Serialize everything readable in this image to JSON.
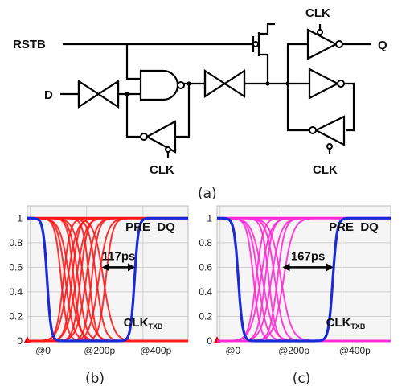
{
  "circuit": {
    "labels": {
      "rstb": "RSTB",
      "d": "D",
      "q": "Q",
      "clk_top": "CLK",
      "clk_bottom_left": "CLK",
      "clk_bottom_right": "CLK"
    },
    "caption": "(a)"
  },
  "chart_data": [
    {
      "type": "line",
      "caption": "(b)",
      "x_ticks": [
        "@0",
        "@200p",
        "@400p"
      ],
      "y_ticks": [
        "1",
        "0.8",
        "0.6",
        "0.4",
        "0.2",
        "0"
      ],
      "ylim": [
        0,
        1.1
      ],
      "xlim": [
        -10,
        560
      ],
      "series_colors": [
        "#ff1a1a",
        "#1a2bd6"
      ],
      "series": [
        {
          "name": "PRE_DQ",
          "color": "#ff1a1a",
          "crossings": [
            110,
            125,
            140,
            155,
            170,
            190,
            210,
            235,
            260
          ],
          "traces": "eye"
        },
        {
          "name": "CLK",
          "name_subscript": "TXB",
          "color": "#1a2bd6",
          "fall": 60,
          "rise": 370,
          "width": 20
        }
      ],
      "annotation": {
        "text": "117ps",
        "from": 255,
        "to": 372,
        "y": 0.6
      }
    },
    {
      "type": "line",
      "caption": "(c)",
      "x_ticks": [
        "@0",
        "@200p",
        "@400p"
      ],
      "y_ticks": [
        "1",
        "0.8",
        "0.6",
        "0.4",
        "0.2",
        "0"
      ],
      "ylim": [
        0,
        1.1
      ],
      "xlim": [
        -10,
        560
      ],
      "series_colors": [
        "#ff2cd6",
        "#1a2bd6"
      ],
      "series": [
        {
          "name": "PRE_DQ",
          "color": "#ff2cd6",
          "crossings": [
            110,
            125,
            140,
            160,
            180,
            200
          ],
          "traces": "eye"
        },
        {
          "name": "CLK",
          "name_subscript": "TXB",
          "color": "#1a2bd6",
          "fall": 60,
          "rise": 370,
          "width": 20
        }
      ],
      "annotation": {
        "text": "167ps",
        "from": 205,
        "to": 372,
        "y": 0.6
      }
    }
  ]
}
